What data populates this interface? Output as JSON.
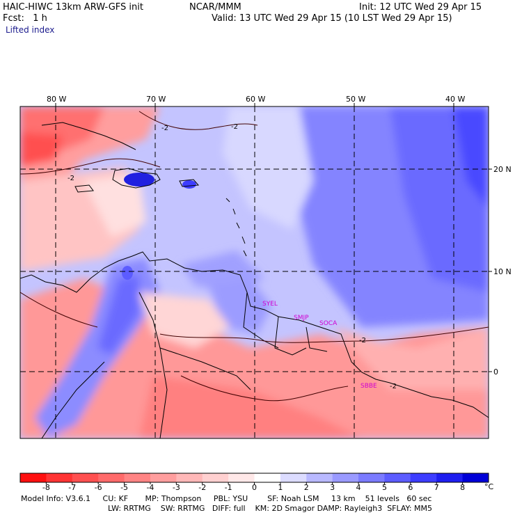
{
  "header": {
    "model": "HAIC-HIWC 13km ARW-GFS init",
    "org": "NCAR/MMM",
    "init": "Init: 12 UTC Wed 29 Apr 15",
    "forecast": "Fcst:   1 h",
    "valid": "Valid: 13 UTC Wed 29 Apr 15 (10 LST Wed 29 Apr 15)",
    "field": "Lifted index"
  },
  "map": {
    "lon_labels": [
      "80 W",
      "70 W",
      "60 W",
      "50 W",
      "40 W"
    ],
    "lat_labels": [
      "20 N",
      "10 N",
      "0"
    ],
    "contour_labels": [
      "-2",
      "-2",
      "-2",
      "-2",
      "-2"
    ],
    "stations": [
      "SYEL",
      "SMJP",
      "SOCA",
      "SBBE"
    ]
  },
  "colorbar": {
    "labels": [
      "-8",
      "-7",
      "-6",
      "-5",
      "-4",
      "-3",
      "-2",
      "-1",
      "0",
      "1",
      "2",
      "3",
      "4",
      "5",
      "6",
      "7",
      "8"
    ],
    "unit": "°C",
    "colors": [
      "#ff1010",
      "#ff3434",
      "#ff5050",
      "#ff6a6a",
      "#ff8484",
      "#ff9e9e",
      "#ffb8b8",
      "#ffd0d0",
      "#ffe8e8",
      "#ffffff",
      "#dcdcff",
      "#b9b9ff",
      "#9a9aff",
      "#7b7bff",
      "#5c5cff",
      "#3d3dff",
      "#1e1ef0",
      "#0000d8"
    ]
  },
  "footer": {
    "line1": "Model Info: V3.6.1     CU: KF       MP: Thompson     PBL: YSU        SF: Noah LSM     13 km    51 levels   60 sec",
    "line2": "LW: RRTMG    SW: RRTMG   DIFF: full    KM: 2D Smagor DAMP: Rayleigh3  SFLAY: MM5"
  }
}
